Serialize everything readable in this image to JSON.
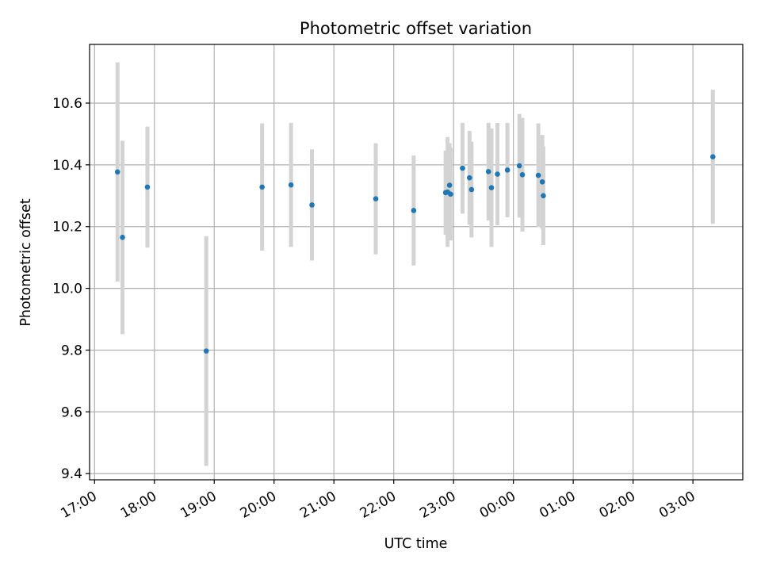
{
  "chart_data": {
    "type": "scatter",
    "title": "Photometric offset variation",
    "xlabel": "UTC time",
    "ylabel": "Photometric offset",
    "xlim": [
      "16:55",
      "03:50"
    ],
    "ylim": [
      9.38,
      10.79
    ],
    "x_ticks": [
      "17:00",
      "18:00",
      "19:00",
      "20:00",
      "21:00",
      "22:00",
      "23:00",
      "00:00",
      "01:00",
      "02:00",
      "03:00"
    ],
    "y_ticks": [
      9.4,
      9.6,
      9.8,
      10.0,
      10.2,
      10.4,
      10.6
    ],
    "grid": true,
    "error_bar_color": "#d3d3d3",
    "marker_color": "#1f77b4",
    "points": [
      {
        "x": "17:23",
        "y": 10.377,
        "err": 0.355
      },
      {
        "x": "17:28",
        "y": 10.165,
        "err": 0.313
      },
      {
        "x": "17:53",
        "y": 10.328,
        "err": 0.196
      },
      {
        "x": "18:52",
        "y": 9.797,
        "err": 0.372
      },
      {
        "x": "19:48",
        "y": 10.328,
        "err": 0.206
      },
      {
        "x": "20:17",
        "y": 10.335,
        "err": 0.201
      },
      {
        "x": "20:38",
        "y": 10.27,
        "err": 0.18
      },
      {
        "x": "21:42",
        "y": 10.29,
        "err": 0.18
      },
      {
        "x": "22:20",
        "y": 10.252,
        "err": 0.178
      },
      {
        "x": "22:52",
        "y": 10.31,
        "err": 0.136
      },
      {
        "x": "22:54",
        "y": 10.312,
        "err": 0.178
      },
      {
        "x": "22:56",
        "y": 10.334,
        "err": 0.136
      },
      {
        "x": "22:57",
        "y": 10.305,
        "err": 0.15
      },
      {
        "x": "23:09",
        "y": 10.389,
        "err": 0.147
      },
      {
        "x": "23:16",
        "y": 10.358,
        "err": 0.152
      },
      {
        "x": "23:18",
        "y": 10.32,
        "err": 0.155
      },
      {
        "x": "23:35",
        "y": 10.378,
        "err": 0.158
      },
      {
        "x": "23:38",
        "y": 10.326,
        "err": 0.192
      },
      {
        "x": "23:44",
        "y": 10.37,
        "err": 0.166
      },
      {
        "x": "23:54",
        "y": 10.383,
        "err": 0.153
      },
      {
        "x": "00:06",
        "y": 10.397,
        "err": 0.168
      },
      {
        "x": "00:09",
        "y": 10.368,
        "err": 0.184
      },
      {
        "x": "00:25",
        "y": 10.366,
        "err": 0.168
      },
      {
        "x": "00:29",
        "y": 10.345,
        "err": 0.152
      },
      {
        "x": "00:30",
        "y": 10.3,
        "err": 0.16
      },
      {
        "x": "03:20",
        "y": 10.426,
        "err": 0.217
      }
    ]
  }
}
